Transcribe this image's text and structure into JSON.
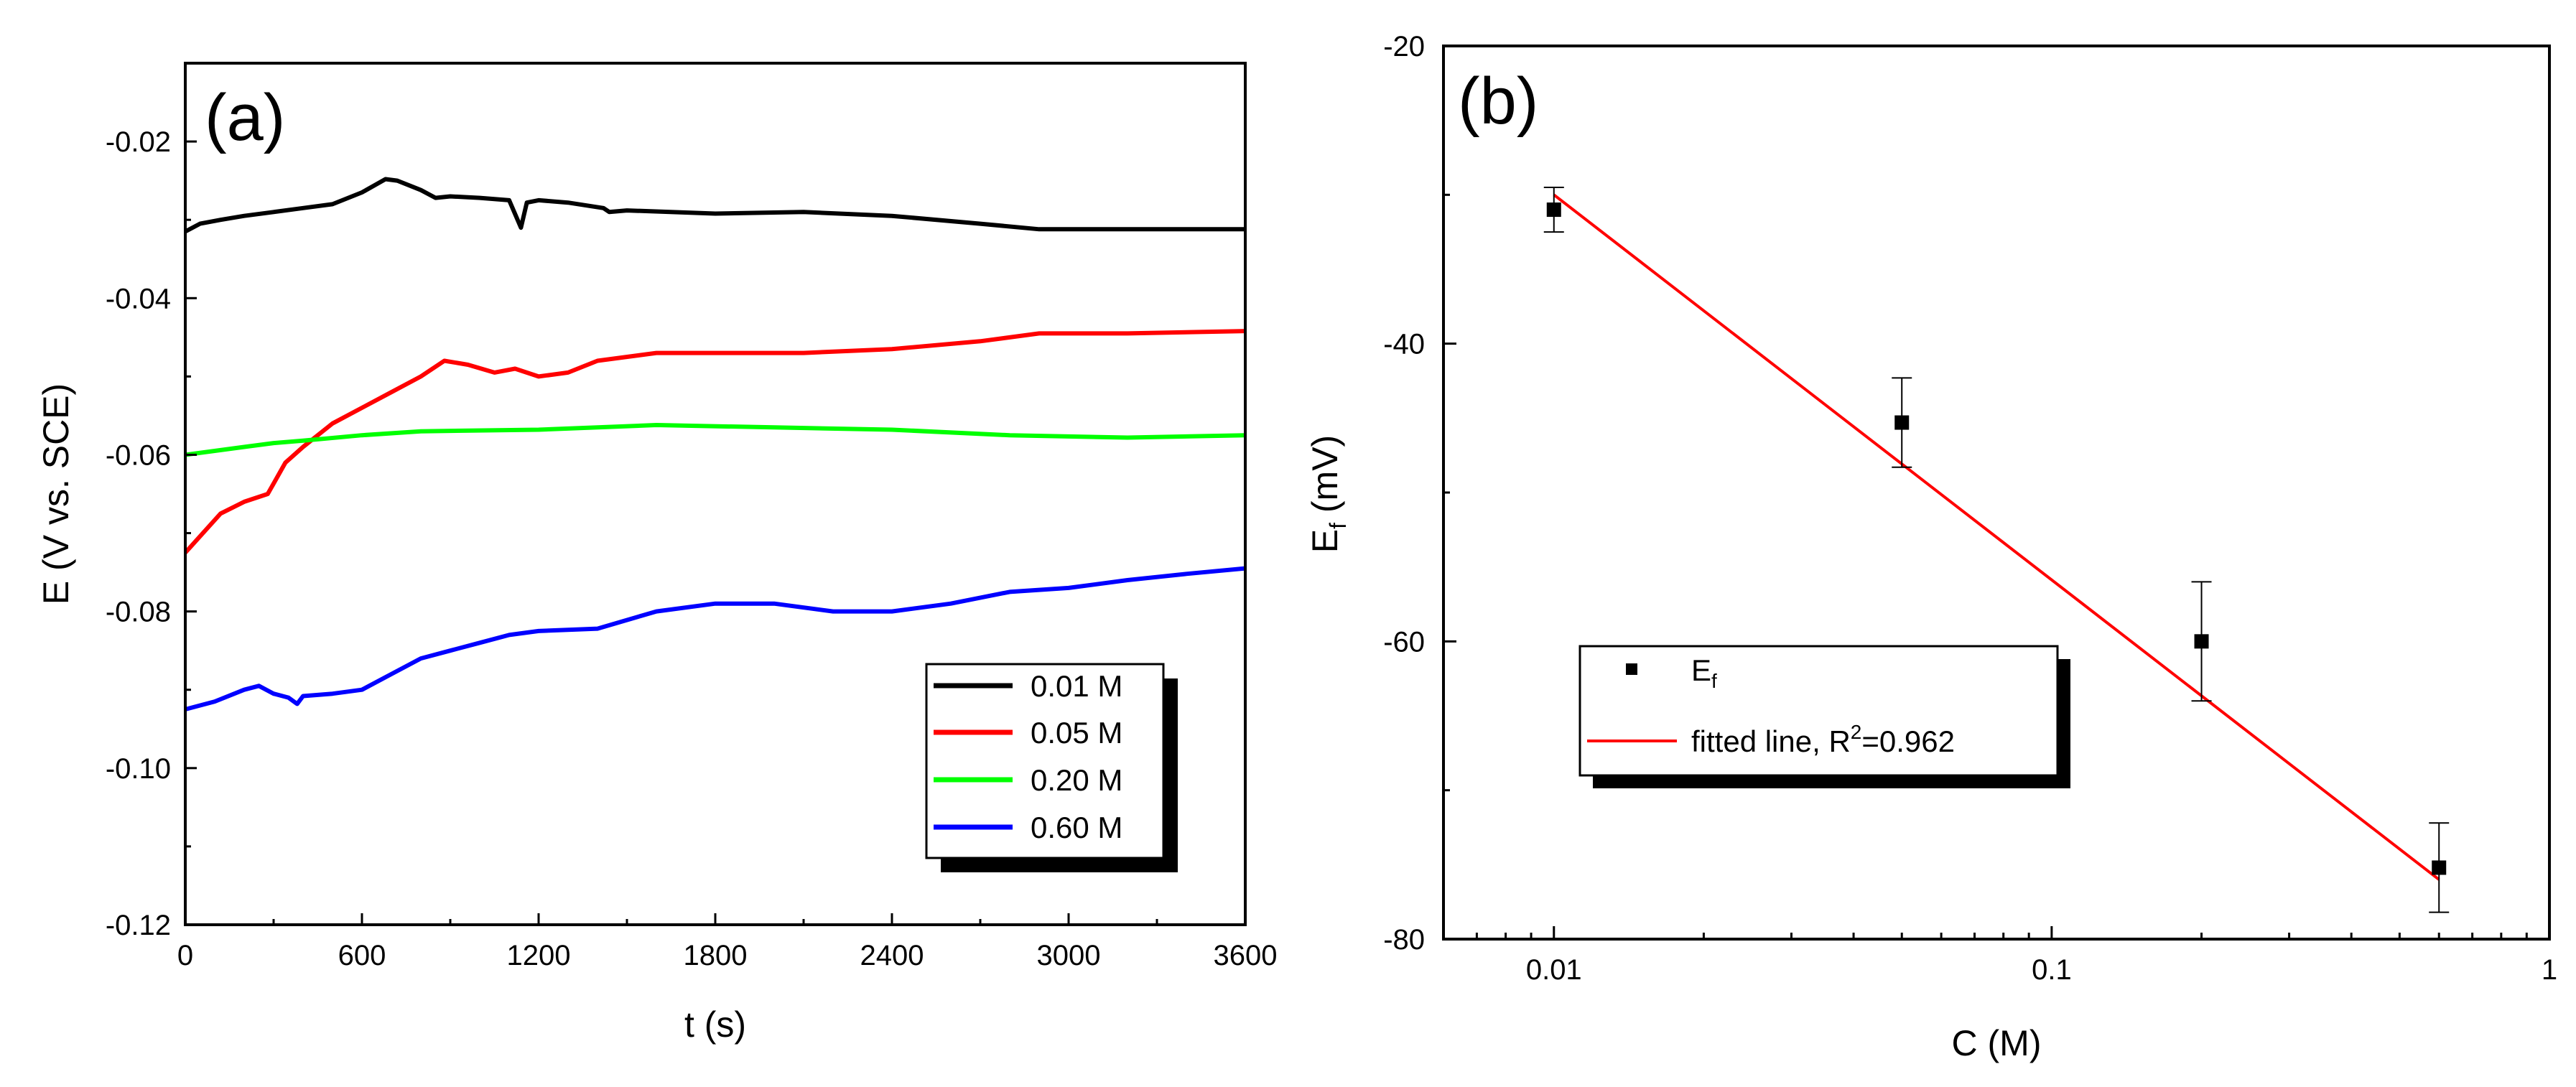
{
  "chart_data": [
    {
      "type": "line",
      "panel_label": "(a)",
      "xlabel": "t (s)",
      "ylabel": "E (V vs. SCE)",
      "xlim": [
        0,
        3600
      ],
      "ylim": [
        -0.12,
        -0.01
      ],
      "xticks": [
        0,
        600,
        1200,
        1800,
        2400,
        3000,
        3600
      ],
      "yticks": [
        -0.12,
        -0.1,
        -0.08,
        -0.06,
        -0.04,
        -0.02
      ],
      "xtick_labels": [
        "0",
        "600",
        "1200",
        "1800",
        "2400",
        "3000",
        "3600"
      ],
      "ytick_labels": [
        "-0.12",
        "-0.10",
        "-0.08",
        "-0.06",
        "-0.04",
        "-0.02"
      ],
      "grid": false,
      "legend_position": "bottom-right",
      "series": [
        {
          "name": "0.01 M",
          "color": "#000000",
          "x": [
            0,
            50,
            120,
            200,
            300,
            400,
            500,
            600,
            680,
            720,
            800,
            850,
            900,
            1000,
            1100,
            1140,
            1160,
            1200,
            1300,
            1420,
            1440,
            1500,
            1800,
            2100,
            2400,
            2700,
            2900,
            3200,
            3600
          ],
          "y": [
            -0.0315,
            -0.0305,
            -0.03,
            -0.0295,
            -0.029,
            -0.0285,
            -0.028,
            -0.0265,
            -0.0248,
            -0.025,
            -0.0262,
            -0.0272,
            -0.027,
            -0.0272,
            -0.0275,
            -0.031,
            -0.0278,
            -0.0275,
            -0.0278,
            -0.0285,
            -0.029,
            -0.0288,
            -0.0292,
            -0.029,
            -0.0295,
            -0.0305,
            -0.0312,
            -0.0312,
            -0.0312
          ]
        },
        {
          "name": "0.05 M",
          "color": "#ff0000",
          "x": [
            0,
            60,
            120,
            200,
            280,
            340,
            400,
            500,
            600,
            700,
            800,
            880,
            960,
            1050,
            1120,
            1200,
            1300,
            1400,
            1600,
            1800,
            2100,
            2400,
            2700,
            2900,
            3200,
            3600
          ],
          "y": [
            -0.0725,
            -0.07,
            -0.0675,
            -0.066,
            -0.065,
            -0.061,
            -0.059,
            -0.056,
            -0.054,
            -0.052,
            -0.05,
            -0.048,
            -0.0485,
            -0.0495,
            -0.049,
            -0.05,
            -0.0495,
            -0.048,
            -0.047,
            -0.047,
            -0.047,
            -0.0465,
            -0.0455,
            -0.0445,
            -0.0445,
            -0.0442
          ]
        },
        {
          "name": "0.20 M",
          "color": "#00ff00",
          "x": [
            0,
            100,
            200,
            300,
            400,
            600,
            800,
            1200,
            1600,
            2000,
            2400,
            2800,
            3200,
            3600
          ],
          "y": [
            -0.06,
            -0.0595,
            -0.059,
            -0.0585,
            -0.0582,
            -0.0575,
            -0.057,
            -0.0568,
            -0.0562,
            -0.0565,
            -0.0568,
            -0.0575,
            -0.0578,
            -0.0575
          ]
        },
        {
          "name": "0.60 M",
          "color": "#0000ff",
          "x": [
            0,
            100,
            200,
            250,
            300,
            350,
            380,
            400,
            500,
            600,
            700,
            800,
            900,
            1000,
            1100,
            1200,
            1400,
            1600,
            1800,
            2000,
            2200,
            2400,
            2600,
            2800,
            3000,
            3200,
            3400,
            3600
          ],
          "y": [
            -0.0925,
            -0.0915,
            -0.09,
            -0.0895,
            -0.0905,
            -0.091,
            -0.0918,
            -0.0908,
            -0.0905,
            -0.09,
            -0.088,
            -0.086,
            -0.085,
            -0.084,
            -0.083,
            -0.0825,
            -0.0822,
            -0.08,
            -0.079,
            -0.079,
            -0.08,
            -0.08,
            -0.079,
            -0.0775,
            -0.077,
            -0.076,
            -0.0752,
            -0.0745
          ]
        }
      ]
    },
    {
      "type": "scatter",
      "panel_label": "(b)",
      "xlabel": "C (M)",
      "ylabel_main": "E",
      "ylabel_sub": "f",
      "ylabel_unit": " (mV)",
      "xscale": "log",
      "xlim": [
        0.006,
        1
      ],
      "ylim": [
        -80,
        -20
      ],
      "xticks": [
        0.01,
        0.1,
        1
      ],
      "yticks": [
        -80,
        -60,
        -40,
        -20
      ],
      "xtick_labels": [
        "0.01",
        "0.1",
        "1"
      ],
      "ytick_labels": [
        "-80",
        "-60",
        "-40",
        "-20"
      ],
      "grid": false,
      "legend_position": "bottom-left",
      "points": {
        "name_main": "E",
        "name_sub": "f",
        "color": "#000000",
        "x": [
          0.01,
          0.05,
          0.2,
          0.6
        ],
        "y": [
          -31.0,
          -45.3,
          -60.0,
          -75.2
        ],
        "err": [
          1.5,
          3.0,
          4.0,
          3.0
        ]
      },
      "fit": {
        "name_main": "fitted line, R",
        "name_sup": "2",
        "name_tail": "=0.962",
        "color": "#ff0000",
        "x": [
          0.01,
          0.6
        ],
        "y": [
          -30.0,
          -76.0
        ]
      }
    }
  ]
}
